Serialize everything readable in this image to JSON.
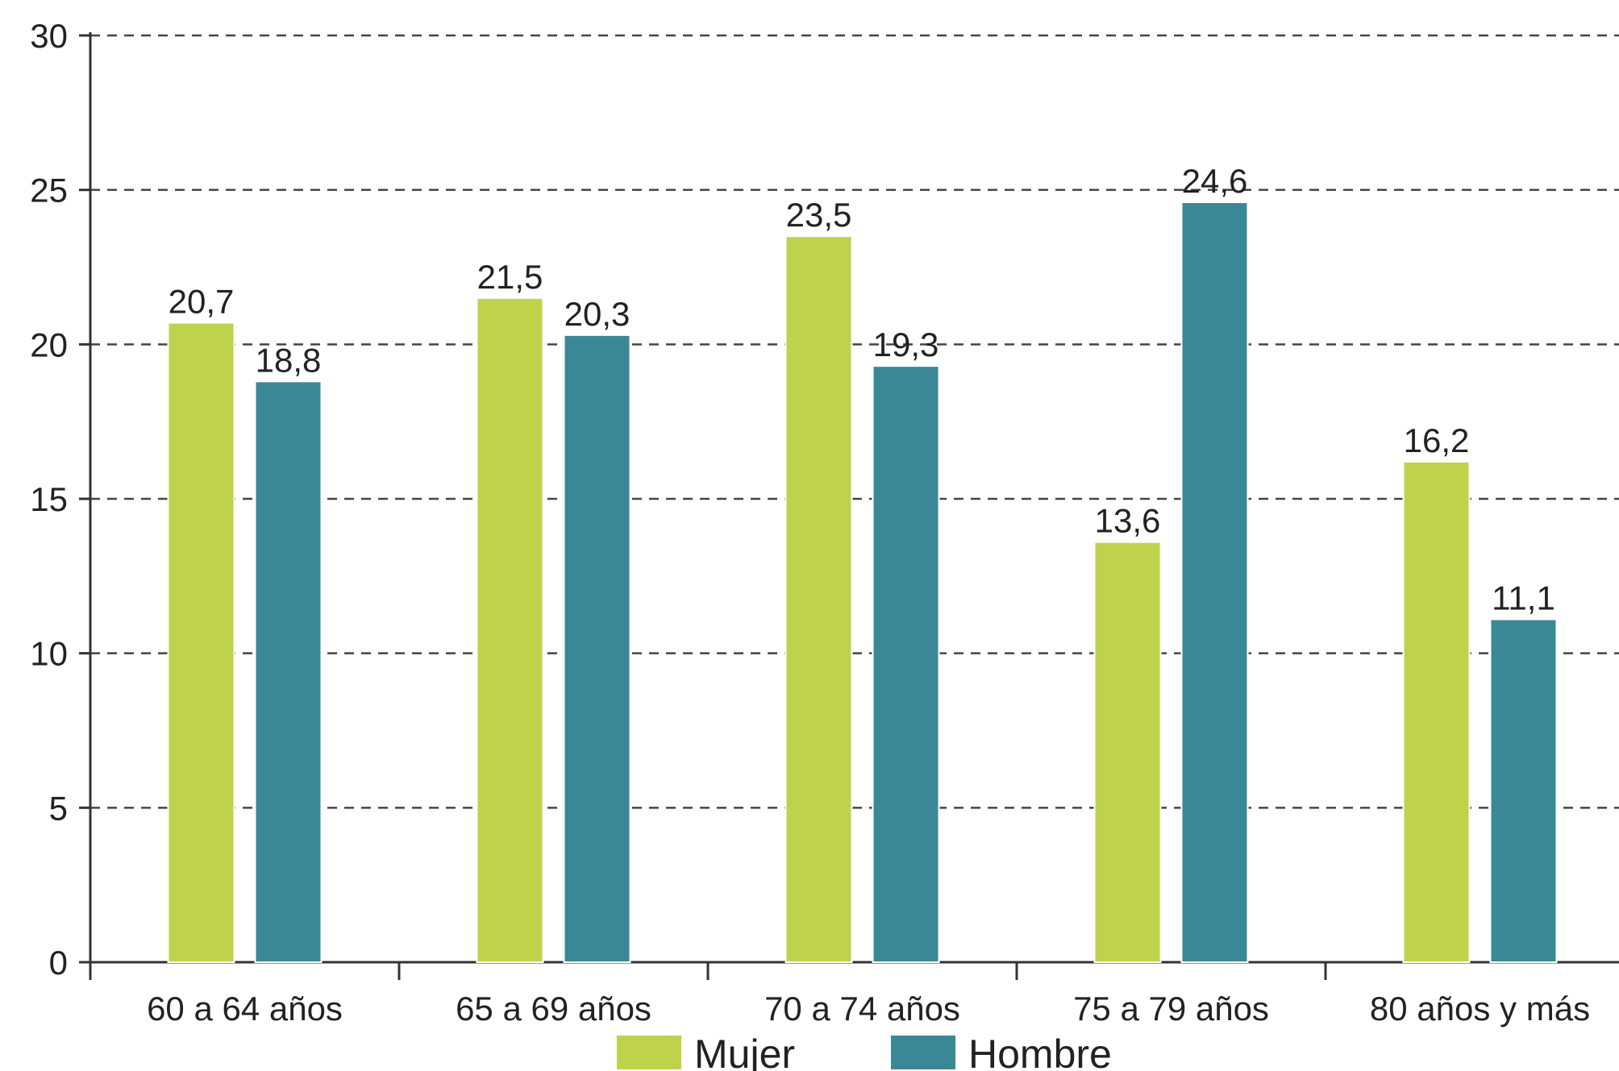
{
  "chart_data": {
    "type": "bar",
    "categories": [
      "60 a 64 años",
      "65 a 69 años",
      "70 a 74 años",
      "75 a 79 años",
      "80 años y más"
    ],
    "series": [
      {
        "name": "Mujer",
        "color": "#bfd24b",
        "values": [
          20.7,
          21.5,
          23.5,
          13.6,
          16.2
        ],
        "labels": [
          "20,7",
          "21,5",
          "23,5",
          "13,6",
          "16,2"
        ]
      },
      {
        "name": "Hombre",
        "color": "#3a8896",
        "values": [
          18.8,
          20.3,
          19.3,
          24.6,
          11.1
        ],
        "labels": [
          "18,8",
          "20,3",
          "19,3",
          "24,6",
          "11,1"
        ]
      }
    ],
    "y_ticks": [
      0,
      5,
      10,
      15,
      20,
      25,
      30
    ],
    "ylim": [
      0,
      30
    ],
    "grid": true,
    "legend_position": "bottom-center"
  }
}
